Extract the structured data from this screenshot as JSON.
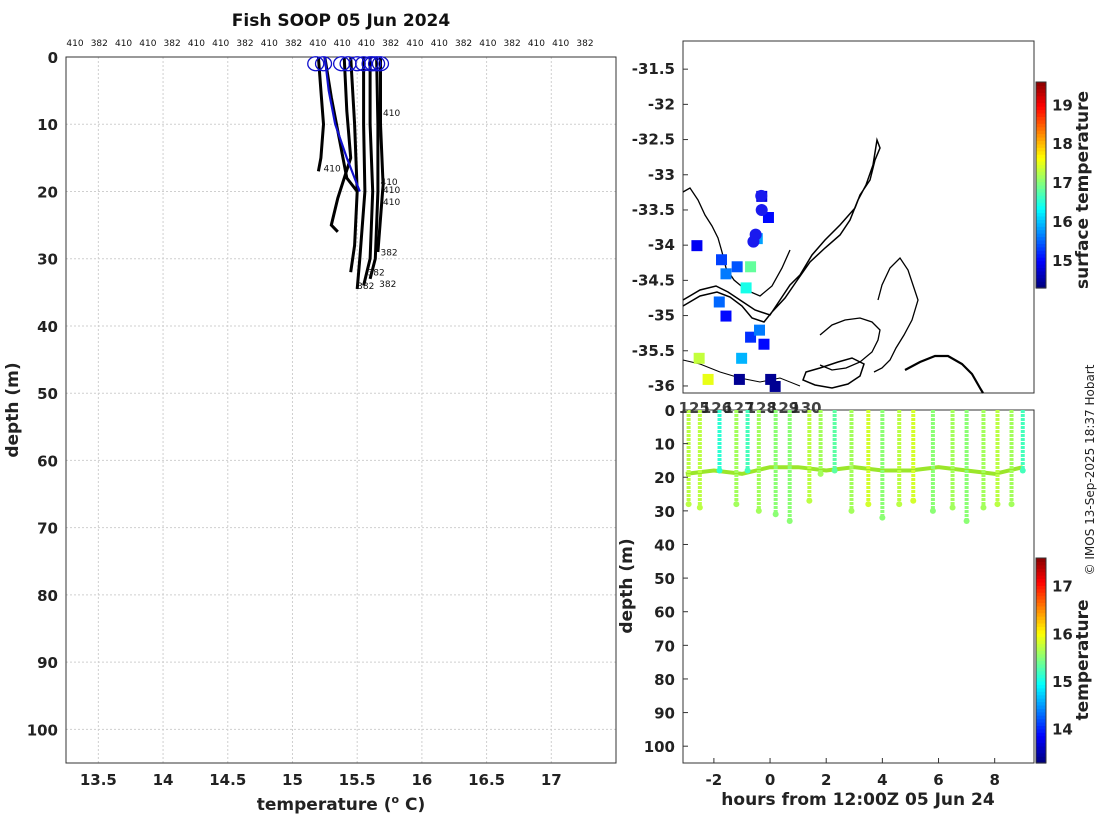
{
  "title": "Fish SOOP 05 Jun 2024",
  "credit": "© IMOS 13-Sep-2025 18:37 Hobart",
  "chart_data": [
    {
      "type": "line",
      "name": "profiles",
      "xlabel": "temperature (° C)",
      "xlabel_base": "temperature (",
      "xlabel_sup": "o",
      "xlabel_end": " C)",
      "ylabel": "depth (m)",
      "xlim": [
        13.25,
        17.5
      ],
      "ylim": [
        105,
        0
      ],
      "xticks": [
        13.5,
        14,
        14.5,
        15,
        15.5,
        16,
        16.5,
        17
      ],
      "xtick_labels": [
        "13.5",
        "14",
        "14.5",
        "15",
        "15.5",
        "16",
        "16.5",
        "17"
      ],
      "yticks": [
        0,
        10,
        20,
        30,
        40,
        50,
        60,
        70,
        80,
        90,
        100
      ],
      "ytick_labels": [
        "0",
        "10",
        "20",
        "30",
        "40",
        "50",
        "60",
        "70",
        "80",
        "90",
        "100"
      ],
      "top_labels": [
        "410",
        "382",
        "410",
        "410",
        "382",
        "410",
        "410",
        "382",
        "410",
        "382",
        "410",
        "410",
        "410",
        "382",
        "410",
        "410",
        "382",
        "410",
        "382",
        "410",
        "410",
        "382"
      ],
      "series": [
        {
          "name": "shallow profile a",
          "color": "#000000",
          "points": [
            [
              15.2,
              0
            ],
            [
              15.22,
              5
            ],
            [
              15.24,
              10
            ],
            [
              15.22,
              15
            ],
            [
              15.2,
              17
            ]
          ]
        },
        {
          "name": "shallow profile b",
          "color": "#000000",
          "points": [
            [
              15.25,
              0
            ],
            [
              15.3,
              6
            ],
            [
              15.36,
              12
            ],
            [
              15.42,
              18
            ],
            [
              15.5,
              20
            ]
          ]
        },
        {
          "name": "mid profile c",
          "color": "#000000",
          "points": [
            [
              15.4,
              0
            ],
            [
              15.42,
              8
            ],
            [
              15.45,
              15
            ],
            [
              15.35,
              21
            ],
            [
              15.3,
              25
            ],
            [
              15.35,
              26
            ]
          ]
        },
        {
          "name": "deep profile d",
          "color": "#000000",
          "points": [
            [
              15.45,
              0
            ],
            [
              15.48,
              10
            ],
            [
              15.5,
              20
            ],
            [
              15.48,
              28
            ],
            [
              15.45,
              32
            ]
          ]
        },
        {
          "name": "deep profile e",
          "color": "#000000",
          "points": [
            [
              15.55,
              0
            ],
            [
              15.55,
              10
            ],
            [
              15.56,
              20
            ],
            [
              15.52,
              30
            ],
            [
              15.5,
              34.5
            ]
          ]
        },
        {
          "name": "deep profile f",
          "color": "#000000",
          "points": [
            [
              15.6,
              0
            ],
            [
              15.6,
              10
            ],
            [
              15.62,
              20
            ],
            [
              15.6,
              30
            ],
            [
              15.55,
              34
            ]
          ]
        },
        {
          "name": "deep profile g",
          "color": "#000000",
          "points": [
            [
              15.65,
              0
            ],
            [
              15.66,
              10
            ],
            [
              15.66,
              20
            ],
            [
              15.64,
              30
            ],
            [
              15.6,
              33
            ]
          ]
        },
        {
          "name": "deep profile h",
          "color": "#000000",
          "points": [
            [
              15.68,
              0
            ],
            [
              15.68,
              10
            ],
            [
              15.7,
              19
            ],
            [
              15.66,
              29
            ]
          ]
        },
        {
          "name": "latest profile",
          "color": "#1010cc",
          "points": [
            [
              15.25,
              0
            ],
            [
              15.28,
              5
            ],
            [
              15.33,
              10
            ],
            [
              15.42,
              15
            ],
            [
              15.52,
              20
            ]
          ]
        }
      ],
      "surface_markers": [
        15.18,
        15.24,
        15.38,
        15.43,
        15.5,
        15.55,
        15.6,
        15.62,
        15.65,
        15.68
      ],
      "profile_labels": [
        {
          "text": "410",
          "x": 15.7,
          "y": 8.8
        },
        {
          "text": "410",
          "x": 15.24,
          "y": 17
        },
        {
          "text": "410",
          "x": 15.68,
          "y": 19
        },
        {
          "text": "410",
          "x": 15.7,
          "y": 20.2
        },
        {
          "text": "410",
          "x": 15.7,
          "y": 22
        },
        {
          "text": "382",
          "x": 15.68,
          "y": 29.5
        },
        {
          "text": "382",
          "x": 15.58,
          "y": 32.5
        },
        {
          "text": "382",
          "x": 15.5,
          "y": 34.5
        },
        {
          "text": "382",
          "x": 15.67,
          "y": 34.2
        }
      ]
    },
    {
      "type": "heatmap",
      "name": "surface temperature map",
      "xlim": [
        124.5,
        140.2
      ],
      "ylim": [
        -36.1,
        -31.1
      ],
      "yticks": [
        -31.5,
        -32,
        -32.5,
        -33,
        -33.5,
        -34,
        -34.5,
        -35,
        -35.5,
        -36
      ],
      "ytick_labels": [
        "-31.5",
        "-32",
        "-32.5",
        "-33",
        "-33.5",
        "-34",
        "-34.5",
        "-35",
        "-35.5",
        "-36"
      ],
      "xticks": [
        125,
        126,
        127,
        128,
        129,
        130
      ],
      "xtick_labels": [
        "125",
        "126",
        "127",
        "128",
        "129",
        "130"
      ],
      "colorbar_label": "surface temperature",
      "colorbar_range": [
        14.3,
        19.6
      ],
      "colorbar_ticks": [
        15,
        16,
        17,
        18,
        19
      ],
      "colorbar_tick_labels": [
        "15",
        "16",
        "17",
        "18",
        "19"
      ],
      "cells": [
        {
          "lon": 126.2,
          "lat": -34.2,
          "value": 15.3
        },
        {
          "lon": 126.4,
          "lat": -34.4,
          "value": 15.6
        },
        {
          "lon": 126.9,
          "lat": -34.3,
          "value": 15.4
        },
        {
          "lon": 127.3,
          "lat": -34.6,
          "value": 16.4
        },
        {
          "lon": 127.5,
          "lat": -34.3,
          "value": 16.8
        },
        {
          "lon": 127.8,
          "lat": -33.9,
          "value": 15.8
        },
        {
          "lon": 126.1,
          "lat": -34.8,
          "value": 15.5
        },
        {
          "lon": 126.4,
          "lat": -35.0,
          "value": 15.0
        },
        {
          "lon": 127.1,
          "lat": -35.6,
          "value": 15.9
        },
        {
          "lon": 127.5,
          "lat": -35.3,
          "value": 15.2
        },
        {
          "lon": 127.9,
          "lat": -35.2,
          "value": 15.6
        },
        {
          "lon": 128.1,
          "lat": -35.4,
          "value": 15.0
        },
        {
          "lon": 127.0,
          "lat": -35.9,
          "value": 14.4
        },
        {
          "lon": 128.4,
          "lat": -35.9,
          "value": 14.4
        },
        {
          "lon": 128.6,
          "lat": -36.0,
          "value": 14.4
        },
        {
          "lon": 125.6,
          "lat": -35.9,
          "value": 17.5
        },
        {
          "lon": 125.2,
          "lat": -35.6,
          "value": 17.3
        },
        {
          "lon": 128.3,
          "lat": -33.6,
          "value": 15.0
        },
        {
          "lon": 128.0,
          "lat": -33.3,
          "value": 14.8
        },
        {
          "lon": 125.1,
          "lat": -34.0,
          "value": 14.9
        }
      ],
      "track": [
        {
          "lon": 128.0,
          "lat": -33.3
        },
        {
          "lon": 128.02,
          "lat": -33.5
        },
        {
          "lon": 127.75,
          "lat": -33.85
        },
        {
          "lon": 127.65,
          "lat": -33.95
        }
      ]
    },
    {
      "type": "scatter",
      "name": "depth time series",
      "xlabel": "hours from 12:00Z 05 Jun 24",
      "ylabel": "depth (m)",
      "xlim": [
        -3.1,
        9.4
      ],
      "ylim": [
        105,
        0
      ],
      "xticks": [
        -2,
        0,
        2,
        4,
        6,
        8
      ],
      "xtick_labels": [
        "-2",
        "0",
        "2",
        "4",
        "6",
        "8"
      ],
      "yticks": [
        0,
        10,
        20,
        30,
        40,
        50,
        60,
        70,
        80,
        90,
        100
      ],
      "ytick_labels": [
        "0",
        "10",
        "20",
        "30",
        "40",
        "50",
        "60",
        "70",
        "80",
        "90",
        "100"
      ],
      "colorbar_label": "temperature",
      "colorbar_range": [
        13.3,
        17.6
      ],
      "colorbar_ticks": [
        14,
        15,
        16,
        17
      ],
      "colorbar_tick_labels": [
        "14",
        "15",
        "16",
        "17"
      ],
      "dives": [
        {
          "t": -2.9,
          "depth": 28,
          "value": 15.7
        },
        {
          "t": -2.5,
          "depth": 29,
          "value": 15.7
        },
        {
          "t": -1.8,
          "depth": 18,
          "value": 15.1
        },
        {
          "t": -1.2,
          "depth": 28,
          "value": 15.6
        },
        {
          "t": -0.8,
          "depth": 18,
          "value": 15.2
        },
        {
          "t": -0.4,
          "depth": 30,
          "value": 15.6
        },
        {
          "t": 0.2,
          "depth": 31,
          "value": 15.5
        },
        {
          "t": 0.7,
          "depth": 33,
          "value": 15.5
        },
        {
          "t": 1.4,
          "depth": 27,
          "value": 15.7
        },
        {
          "t": 1.8,
          "depth": 19,
          "value": 15.6
        },
        {
          "t": 2.3,
          "depth": 18,
          "value": 15.3
        },
        {
          "t": 2.9,
          "depth": 30,
          "value": 15.6
        },
        {
          "t": 3.5,
          "depth": 28,
          "value": 15.8
        },
        {
          "t": 4.0,
          "depth": 32,
          "value": 15.5
        },
        {
          "t": 4.6,
          "depth": 28,
          "value": 15.7
        },
        {
          "t": 5.1,
          "depth": 27,
          "value": 15.8
        },
        {
          "t": 5.8,
          "depth": 30,
          "value": 15.5
        },
        {
          "t": 6.5,
          "depth": 29,
          "value": 15.6
        },
        {
          "t": 7.0,
          "depth": 33,
          "value": 15.5
        },
        {
          "t": 7.6,
          "depth": 29,
          "value": 15.6
        },
        {
          "t": 8.1,
          "depth": 28,
          "value": 15.7
        },
        {
          "t": 8.6,
          "depth": 28,
          "value": 15.6
        },
        {
          "t": 9.0,
          "depth": 18,
          "value": 15.2
        }
      ],
      "upper_layer": [
        {
          "t": -3.0,
          "depth": 19
        },
        {
          "t": -2.0,
          "depth": 18
        },
        {
          "t": -1.0,
          "depth": 19
        },
        {
          "t": 0.0,
          "depth": 17
        },
        {
          "t": 1.0,
          "depth": 17
        },
        {
          "t": 2.0,
          "depth": 18
        },
        {
          "t": 3.0,
          "depth": 17
        },
        {
          "t": 4.0,
          "depth": 18
        },
        {
          "t": 5.0,
          "depth": 18
        },
        {
          "t": 6.0,
          "depth": 17
        },
        {
          "t": 7.0,
          "depth": 18
        },
        {
          "t": 8.0,
          "depth": 19
        },
        {
          "t": 9.0,
          "depth": 17
        }
      ]
    }
  ]
}
